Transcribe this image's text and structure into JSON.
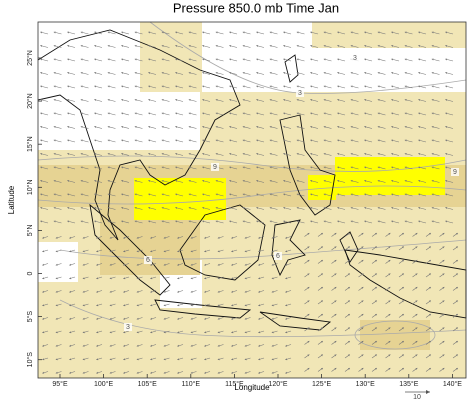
{
  "title": "Pressure 850.0 mb Time Jan",
  "x_axis_label": "Longitude",
  "y_axis_label": "Latitude",
  "lon_ticks": [
    "95°E",
    "100°E",
    "105°E",
    "110°E",
    "115°E",
    "120°E",
    "125°E",
    "130°E",
    "135°E",
    "140°E"
  ],
  "lat_ticks": [
    "25°N",
    "20°N",
    "15°N",
    "10°N",
    "5°N",
    "0",
    "5°S",
    "10°S"
  ],
  "contour_labels": [
    "9",
    "9",
    "6",
    "6",
    "3",
    "3",
    "3"
  ],
  "reference_vector": "10"
}
